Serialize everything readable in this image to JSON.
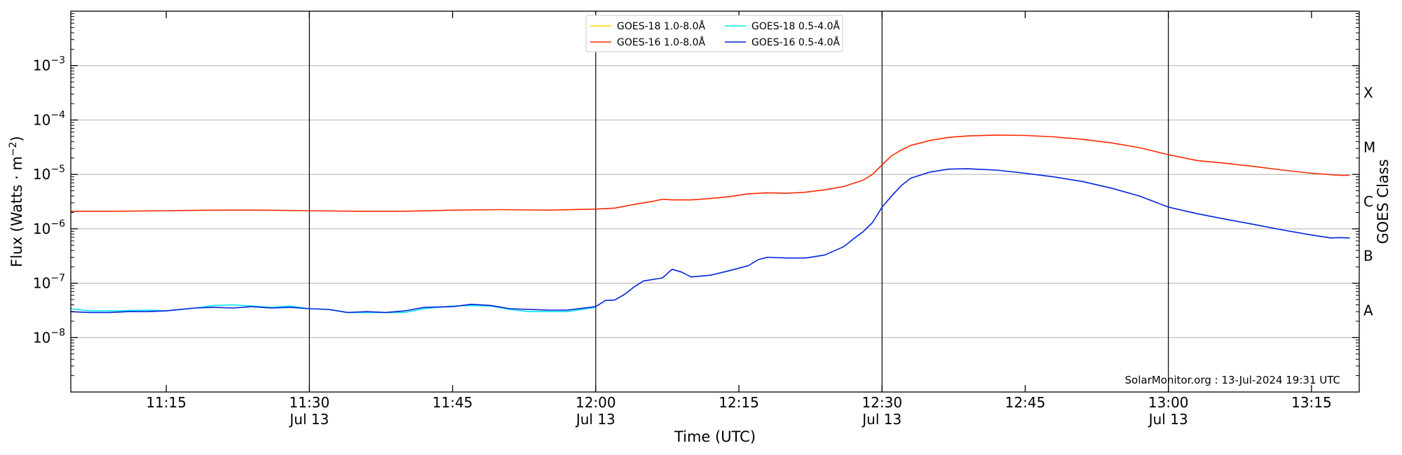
{
  "chart_data": {
    "type": "line",
    "xlabel": "Time (UTC)",
    "ylabel": "Flux (Watts · m",
    "ylabel_sup": "−2",
    "ylabel_close": ")",
    "right_axis_label": "GOES Class",
    "credit": "SolarMonitor.org : 13-Jul-2024 19:31 UTC",
    "y_scale": "log",
    "ylim": [
      1e-09,
      0.01
    ],
    "xlim_minutes": [
      665,
      800
    ],
    "grid": "horizontal",
    "legend_position": "top-center",
    "y_ticks": [
      {
        "base": "10",
        "exp": "−8",
        "value": 1e-08
      },
      {
        "base": "10",
        "exp": "−7",
        "value": 1e-07
      },
      {
        "base": "10",
        "exp": "−6",
        "value": 1e-06
      },
      {
        "base": "10",
        "exp": "−5",
        "value": 1e-05
      },
      {
        "base": "10",
        "exp": "−4",
        "value": 0.0001
      },
      {
        "base": "10",
        "exp": "−3",
        "value": 0.001
      }
    ],
    "x_ticks": [
      {
        "minute": 675,
        "label": "11:15",
        "date": ""
      },
      {
        "minute": 690,
        "label": "11:30",
        "date": "Jul 13"
      },
      {
        "minute": 705,
        "label": "11:45",
        "date": ""
      },
      {
        "minute": 720,
        "label": "12:00",
        "date": "Jul 13"
      },
      {
        "minute": 735,
        "label": "12:15",
        "date": ""
      },
      {
        "minute": 750,
        "label": "12:30",
        "date": "Jul 13"
      },
      {
        "minute": 765,
        "label": "12:45",
        "date": ""
      },
      {
        "minute": 780,
        "label": "13:00",
        "date": "Jul 13"
      },
      {
        "minute": 795,
        "label": "13:15",
        "date": ""
      }
    ],
    "day_lines_minutes": [
      690,
      720,
      750,
      780
    ],
    "goes_classes": [
      {
        "label": "A",
        "value": 3.16e-08
      },
      {
        "label": "B",
        "value": 3.16e-07
      },
      {
        "label": "C",
        "value": 3.16e-06
      },
      {
        "label": "M",
        "value": 3.16e-05
      },
      {
        "label": "X",
        "value": 0.000316
      }
    ],
    "series": [
      {
        "name": "GOES-18 1.0-8.0Å",
        "color": "#ffd700",
        "points": []
      },
      {
        "name": "GOES-18 0.5-4.0Å",
        "color": "#00e5ee",
        "points": [
          [
            665,
            3.4e-08
          ],
          [
            667,
            3.1e-08
          ],
          [
            670,
            3.1e-08
          ],
          [
            673,
            3.2e-08
          ],
          [
            675,
            3.1e-08
          ],
          [
            678,
            3.5e-08
          ],
          [
            680,
            3.9e-08
          ],
          [
            682,
            4e-08
          ],
          [
            684,
            3.8e-08
          ],
          [
            686,
            3.6e-08
          ],
          [
            688,
            3.8e-08
          ],
          [
            690,
            3.4e-08
          ],
          [
            692,
            3.3e-08
          ],
          [
            694,
            2.9e-08
          ],
          [
            696,
            2.9e-08
          ],
          [
            698,
            2.9e-08
          ],
          [
            700,
            2.9e-08
          ],
          [
            702,
            3.4e-08
          ],
          [
            705,
            3.8e-08
          ],
          [
            707,
            3.9e-08
          ],
          [
            709,
            3.8e-08
          ],
          [
            711,
            3.3e-08
          ],
          [
            713,
            3e-08
          ],
          [
            715,
            3e-08
          ],
          [
            717,
            3e-08
          ],
          [
            720,
            3.6e-08
          ]
        ]
      },
      {
        "name": "GOES-16 1.0-8.0Å",
        "color": "#ff2a00",
        "points": [
          [
            665,
            2.1e-06
          ],
          [
            670,
            2.1e-06
          ],
          [
            675,
            2.15e-06
          ],
          [
            680,
            2.2e-06
          ],
          [
            685,
            2.2e-06
          ],
          [
            690,
            2.15e-06
          ],
          [
            695,
            2.1e-06
          ],
          [
            700,
            2.1e-06
          ],
          [
            705,
            2.2e-06
          ],
          [
            710,
            2.25e-06
          ],
          [
            715,
            2.2e-06
          ],
          [
            720,
            2.3e-06
          ],
          [
            722,
            2.4e-06
          ],
          [
            724,
            2.8e-06
          ],
          [
            726,
            3.2e-06
          ],
          [
            727,
            3.5e-06
          ],
          [
            728,
            3.4e-06
          ],
          [
            730,
            3.4e-06
          ],
          [
            732,
            3.6e-06
          ],
          [
            734,
            3.9e-06
          ],
          [
            736,
            4.4e-06
          ],
          [
            738,
            4.6e-06
          ],
          [
            740,
            4.5e-06
          ],
          [
            742,
            4.7e-06
          ],
          [
            744,
            5.2e-06
          ],
          [
            746,
            6e-06
          ],
          [
            748,
            7.8e-06
          ],
          [
            749,
            1e-05
          ],
          [
            750,
            1.5e-05
          ],
          [
            751,
            2.2e-05
          ],
          [
            752,
            2.8e-05
          ],
          [
            753,
            3.4e-05
          ],
          [
            755,
            4.2e-05
          ],
          [
            757,
            4.8e-05
          ],
          [
            759,
            5.1e-05
          ],
          [
            762,
            5.3e-05
          ],
          [
            765,
            5.2e-05
          ],
          [
            768,
            4.9e-05
          ],
          [
            771,
            4.4e-05
          ],
          [
            774,
            3.8e-05
          ],
          [
            777,
            3.1e-05
          ],
          [
            780,
            2.3e-05
          ],
          [
            783,
            1.8e-05
          ],
          [
            786,
            1.6e-05
          ],
          [
            789,
            1.4e-05
          ],
          [
            792,
            1.2e-05
          ],
          [
            795,
            1.05e-05
          ],
          [
            798,
            9.6e-06
          ],
          [
            799,
            9.6e-06
          ]
        ]
      },
      {
        "name": "GOES-16 0.5-4.0Å",
        "color": "#0022dd",
        "points": [
          [
            665,
            3e-08
          ],
          [
            667,
            2.9e-08
          ],
          [
            669,
            2.9e-08
          ],
          [
            671,
            3e-08
          ],
          [
            673,
            3e-08
          ],
          [
            675,
            3.1e-08
          ],
          [
            678,
            3.5e-08
          ],
          [
            680,
            3.6e-08
          ],
          [
            682,
            3.5e-08
          ],
          [
            684,
            3.7e-08
          ],
          [
            686,
            3.5e-08
          ],
          [
            688,
            3.6e-08
          ],
          [
            690,
            3.4e-08
          ],
          [
            692,
            3.3e-08
          ],
          [
            694,
            2.9e-08
          ],
          [
            696,
            3e-08
          ],
          [
            698,
            2.9e-08
          ],
          [
            700,
            3.1e-08
          ],
          [
            702,
            3.6e-08
          ],
          [
            705,
            3.7e-08
          ],
          [
            707,
            4.1e-08
          ],
          [
            709,
            3.9e-08
          ],
          [
            711,
            3.4e-08
          ],
          [
            713,
            3.3e-08
          ],
          [
            715,
            3.2e-08
          ],
          [
            717,
            3.2e-08
          ],
          [
            720,
            3.7e-08
          ],
          [
            721,
            4.8e-08
          ],
          [
            722,
            4.9e-08
          ],
          [
            723,
            6.2e-08
          ],
          [
            724,
            8.5e-08
          ],
          [
            725,
            1.1e-07
          ],
          [
            727,
            1.25e-07
          ],
          [
            728,
            1.8e-07
          ],
          [
            729,
            1.6e-07
          ],
          [
            730,
            1.3e-07
          ],
          [
            732,
            1.4e-07
          ],
          [
            734,
            1.7e-07
          ],
          [
            736,
            2.1e-07
          ],
          [
            737,
            2.7e-07
          ],
          [
            738,
            3e-07
          ],
          [
            740,
            2.9e-07
          ],
          [
            742,
            2.9e-07
          ],
          [
            744,
            3.3e-07
          ],
          [
            746,
            4.7e-07
          ],
          [
            747,
            6.5e-07
          ],
          [
            748,
            8.8e-07
          ],
          [
            749,
            1.3e-06
          ],
          [
            750,
            2.5e-06
          ],
          [
            751,
            4e-06
          ],
          [
            752,
            6.2e-06
          ],
          [
            753,
            8.5e-06
          ],
          [
            755,
            1.1e-05
          ],
          [
            757,
            1.25e-05
          ],
          [
            759,
            1.27e-05
          ],
          [
            762,
            1.2e-05
          ],
          [
            765,
            1.05e-05
          ],
          [
            768,
            9e-06
          ],
          [
            771,
            7.4e-06
          ],
          [
            774,
            5.6e-06
          ],
          [
            777,
            4e-06
          ],
          [
            780,
            2.5e-06
          ],
          [
            783,
            1.9e-06
          ],
          [
            786,
            1.5e-06
          ],
          [
            789,
            1.2e-06
          ],
          [
            792,
            9.5e-07
          ],
          [
            795,
            7.7e-07
          ],
          [
            797,
            6.8e-07
          ],
          [
            798,
            6.9e-07
          ],
          [
            799,
            6.8e-07
          ]
        ]
      }
    ]
  }
}
